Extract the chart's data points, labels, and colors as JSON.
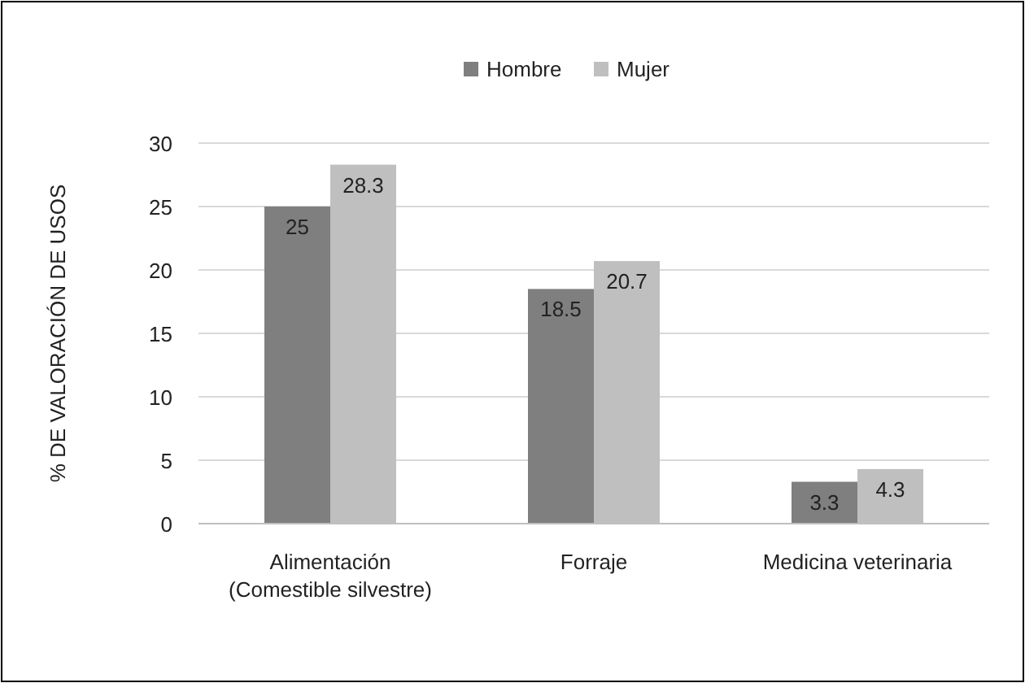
{
  "chart_data": {
    "type": "bar",
    "ylabel": "% DE VALORACIÓN DE USOS",
    "categories": [
      "Alimentación (Comestible silvestre)",
      "Forraje",
      "Medicina veterinaria"
    ],
    "series": [
      {
        "name": "Hombre",
        "color": "#7f7f7f",
        "values": [
          25,
          18.5,
          3.3
        ]
      },
      {
        "name": "Mujer",
        "color": "#bfbfbf",
        "values": [
          28.3,
          20.7,
          4.3
        ]
      }
    ],
    "ylim": [
      0,
      30
    ],
    "yticks": [
      0,
      5,
      10,
      15,
      20,
      25,
      30
    ],
    "grid": "y",
    "legend": "top",
    "data_labels": true
  }
}
